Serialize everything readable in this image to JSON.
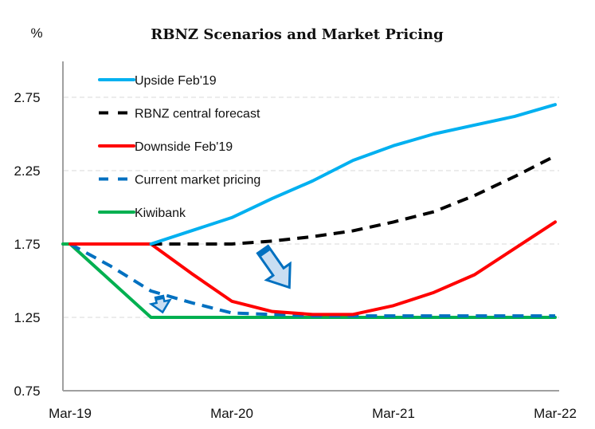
{
  "chart_data": {
    "type": "line",
    "title": "RBNZ Scenarios and Market Pricing",
    "ylabel": "%",
    "xlabel": "",
    "ylim": [
      0.75,
      3.0
    ],
    "yticks": [
      "0.75",
      "1.25",
      "1.75",
      "2.25",
      "2.75"
    ],
    "ytick_values": [
      0.75,
      1.25,
      1.75,
      2.25,
      2.75
    ],
    "grid": "horizontal dashed",
    "legend_position": "top-left",
    "x": [
      "Mar-19",
      "Jun-19",
      "Sep-19",
      "Dec-19",
      "Mar-20",
      "Jun-20",
      "Sep-20",
      "Dec-20",
      "Mar-21",
      "Jun-21",
      "Sep-21",
      "Dec-21",
      "Mar-22"
    ],
    "xtick_labels": [
      "Mar-19",
      "Mar-20",
      "Mar-21",
      "Mar-22"
    ],
    "series": [
      {
        "name": "Upside Feb'19",
        "color": "#00B0F0",
        "dash": "solid",
        "values": [
          null,
          null,
          1.75,
          1.84,
          1.93,
          2.06,
          2.18,
          2.32,
          2.42,
          2.5,
          2.56,
          2.62,
          2.7
        ]
      },
      {
        "name": "RBNZ central forecast",
        "color": "#000000",
        "dash": "dashed",
        "values": [
          null,
          null,
          1.75,
          1.75,
          1.75,
          1.77,
          1.8,
          1.84,
          1.9,
          1.97,
          2.08,
          2.21,
          2.35
        ]
      },
      {
        "name": "Downside Feb'19",
        "color": "#FF0000",
        "dash": "solid",
        "values": [
          1.75,
          1.75,
          1.75,
          1.55,
          1.36,
          1.29,
          1.27,
          1.27,
          1.33,
          1.42,
          1.54,
          1.72,
          1.9
        ]
      },
      {
        "name": "Current market pricing",
        "color": "#0070C0",
        "dash": "dashed",
        "values": [
          1.75,
          1.6,
          1.43,
          1.35,
          1.28,
          1.27,
          1.26,
          1.26,
          1.26,
          1.26,
          1.26,
          1.26,
          1.26
        ]
      },
      {
        "name": "Kiwibank",
        "color": "#00B050",
        "dash": "solid",
        "values": [
          1.75,
          1.5,
          1.25,
          1.25,
          1.25,
          1.25,
          1.25,
          1.25,
          1.25,
          1.25,
          1.25,
          1.25,
          1.25
        ]
      }
    ],
    "annotations": [
      {
        "type": "arrow",
        "direction": "down-right",
        "meaning": "shift from RBNZ central forecast to market pricing",
        "from_x": "Mar-20",
        "color": "#0070C0"
      },
      {
        "type": "arrow",
        "direction": "down",
        "meaning": "shift toward Kiwibank",
        "from_x": "Sep-19",
        "color": "#0070C0"
      }
    ]
  }
}
